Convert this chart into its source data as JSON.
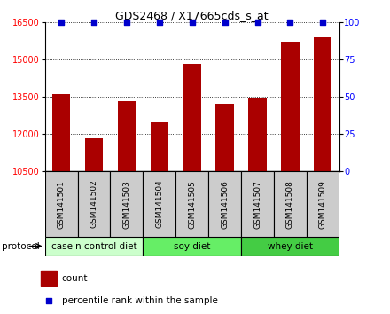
{
  "title": "GDS2468 / X17665cds_s_at",
  "samples": [
    "GSM141501",
    "GSM141502",
    "GSM141503",
    "GSM141504",
    "GSM141505",
    "GSM141506",
    "GSM141507",
    "GSM141508",
    "GSM141509"
  ],
  "counts": [
    13600,
    11800,
    13300,
    12500,
    14800,
    13200,
    13450,
    15700,
    15900
  ],
  "percentile_ranks": [
    100,
    100,
    100,
    100,
    100,
    100,
    100,
    100,
    100
  ],
  "ylim_left": [
    10500,
    16500
  ],
  "ylim_right": [
    0,
    100
  ],
  "yticks_left": [
    10500,
    12000,
    13500,
    15000,
    16500
  ],
  "yticks_right": [
    0,
    25,
    50,
    75,
    100
  ],
  "groups": [
    {
      "label": "casein control diet",
      "start": 0,
      "end": 3,
      "color": "#ccffcc"
    },
    {
      "label": "soy diet",
      "start": 3,
      "end": 6,
      "color": "#66ee66"
    },
    {
      "label": "whey diet",
      "start": 6,
      "end": 9,
      "color": "#44cc44"
    }
  ],
  "bar_color": "#aa0000",
  "dot_color": "#0000cc",
  "bar_width": 0.55,
  "protocol_label": "protocol",
  "legend_count_label": "count",
  "legend_percentile_label": "percentile rank within the sample",
  "tick_label_bg": "#cccccc",
  "group_border_color": "#000000",
  "title_fontsize": 9,
  "axis_fontsize": 7,
  "label_fontsize": 6.5
}
